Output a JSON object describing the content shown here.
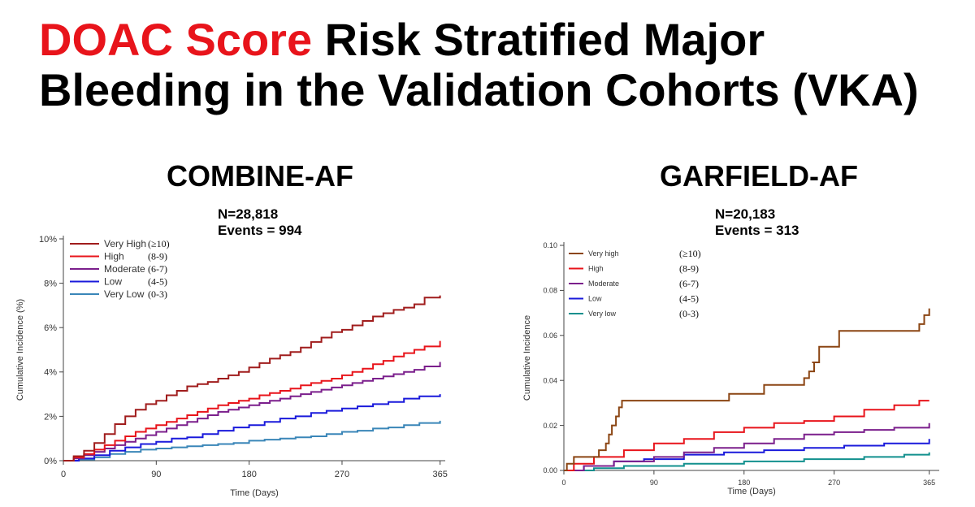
{
  "title": {
    "accent": "DOAC Score",
    "rest": " Risk Stratified Major Bleeding in the Validation Cohorts (VKA)"
  },
  "colors": {
    "accent": "#e8141b"
  },
  "chart_data": [
    {
      "type": "line",
      "panel_title": "COMBINE-AF",
      "n_label": "N=28,818",
      "events_label": "Events = 994",
      "xlabel": "Time (Days)",
      "ylabel": "Cumulative Incidence (%)",
      "xlim": [
        0,
        370
      ],
      "ylim": [
        0,
        10
      ],
      "xticks": [
        0,
        90,
        180,
        270,
        365
      ],
      "xtick_labels": [
        "0",
        "90",
        "180",
        "270",
        "365"
      ],
      "yticks": [
        0,
        2,
        4,
        6,
        8,
        10
      ],
      "ytick_labels": [
        "0%",
        "2%",
        "4%",
        "6%",
        "8%",
        "10%"
      ],
      "legend_placement": "top-left",
      "series": [
        {
          "name": "Very High",
          "range": "(≥10)",
          "color": "#a01c1c",
          "x": [
            0,
            10,
            20,
            30,
            40,
            50,
            60,
            70,
            80,
            90,
            100,
            110,
            120,
            130,
            140,
            150,
            160,
            170,
            180,
            190,
            200,
            210,
            220,
            230,
            240,
            250,
            260,
            270,
            280,
            290,
            300,
            310,
            320,
            330,
            340,
            350,
            365
          ],
          "y": [
            0,
            0.2,
            0.45,
            0.8,
            1.2,
            1.65,
            2.0,
            2.3,
            2.55,
            2.7,
            2.95,
            3.15,
            3.35,
            3.45,
            3.55,
            3.7,
            3.85,
            4.0,
            4.2,
            4.4,
            4.6,
            4.75,
            4.9,
            5.1,
            5.35,
            5.55,
            5.8,
            5.9,
            6.1,
            6.3,
            6.5,
            6.65,
            6.8,
            6.9,
            7.05,
            7.35,
            7.45
          ]
        },
        {
          "name": "High",
          "range": "(8-9)",
          "color": "#e8141b",
          "x": [
            0,
            10,
            20,
            30,
            40,
            50,
            60,
            70,
            80,
            90,
            100,
            110,
            120,
            130,
            140,
            150,
            160,
            170,
            180,
            190,
            200,
            210,
            220,
            230,
            240,
            250,
            260,
            270,
            280,
            290,
            300,
            310,
            320,
            330,
            340,
            350,
            365
          ],
          "y": [
            0,
            0.15,
            0.3,
            0.5,
            0.7,
            0.9,
            1.1,
            1.3,
            1.45,
            1.6,
            1.75,
            1.9,
            2.05,
            2.2,
            2.35,
            2.5,
            2.6,
            2.7,
            2.8,
            2.95,
            3.05,
            3.15,
            3.25,
            3.4,
            3.5,
            3.6,
            3.7,
            3.85,
            4.0,
            4.15,
            4.35,
            4.5,
            4.7,
            4.85,
            5.0,
            5.15,
            5.4
          ]
        },
        {
          "name": "Moderate",
          "range": "(6-7)",
          "color": "#7b1f8c",
          "x": [
            0,
            10,
            20,
            30,
            40,
            50,
            60,
            70,
            80,
            90,
            100,
            110,
            120,
            130,
            140,
            150,
            160,
            170,
            180,
            190,
            200,
            210,
            220,
            230,
            240,
            250,
            260,
            270,
            280,
            290,
            300,
            310,
            320,
            330,
            340,
            350,
            365
          ],
          "y": [
            0,
            0.1,
            0.25,
            0.4,
            0.55,
            0.7,
            0.85,
            1.0,
            1.15,
            1.3,
            1.45,
            1.6,
            1.75,
            1.9,
            2.05,
            2.2,
            2.3,
            2.4,
            2.5,
            2.6,
            2.7,
            2.8,
            2.9,
            3.0,
            3.1,
            3.2,
            3.3,
            3.4,
            3.5,
            3.6,
            3.7,
            3.8,
            3.9,
            4.0,
            4.1,
            4.25,
            4.45
          ]
        },
        {
          "name": "Low",
          "range": "(4-5)",
          "color": "#1a1adb",
          "x": [
            0,
            15,
            30,
            45,
            60,
            75,
            90,
            105,
            120,
            135,
            150,
            165,
            180,
            195,
            210,
            225,
            240,
            255,
            270,
            285,
            300,
            315,
            330,
            345,
            365
          ],
          "y": [
            0,
            0.1,
            0.25,
            0.45,
            0.6,
            0.75,
            0.85,
            1.0,
            1.05,
            1.2,
            1.35,
            1.5,
            1.6,
            1.75,
            1.9,
            2.0,
            2.15,
            2.25,
            2.35,
            2.45,
            2.55,
            2.65,
            2.8,
            2.9,
            3.0
          ]
        },
        {
          "name": "Very Low",
          "range": "(0-3)",
          "color": "#3a86b8",
          "x": [
            0,
            15,
            30,
            45,
            60,
            75,
            90,
            105,
            120,
            135,
            150,
            165,
            180,
            195,
            210,
            225,
            240,
            255,
            270,
            285,
            300,
            315,
            330,
            345,
            365
          ],
          "y": [
            0,
            0.05,
            0.15,
            0.3,
            0.4,
            0.5,
            0.55,
            0.6,
            0.65,
            0.7,
            0.75,
            0.8,
            0.9,
            0.95,
            1.0,
            1.05,
            1.1,
            1.2,
            1.3,
            1.35,
            1.45,
            1.5,
            1.6,
            1.7,
            1.8
          ]
        }
      ]
    },
    {
      "type": "line",
      "panel_title": "GARFIELD-AF",
      "n_label": "N=20,183",
      "events_label": "Events = 313",
      "xlabel": "Time (Days)",
      "ylabel": "Cumulative Incidence",
      "xlim": [
        0,
        375
      ],
      "ylim": [
        0,
        0.1
      ],
      "xticks": [
        0,
        90,
        180,
        270,
        365
      ],
      "xtick_labels": [
        "0",
        "90",
        "180",
        "270",
        "365"
      ],
      "yticks": [
        0,
        0.02,
        0.04,
        0.06,
        0.08,
        0.1
      ],
      "ytick_labels": [
        "0.00",
        "0.02",
        "0.04",
        "0.06",
        "0.08",
        "0.10"
      ],
      "legend_placement": "top-left",
      "series": [
        {
          "name": "Very high",
          "range": "(≥10)",
          "color": "#8b4513",
          "x": [
            0,
            3,
            10,
            25,
            35,
            40,
            42,
            45,
            48,
            52,
            55,
            58,
            100,
            165,
            165,
            200,
            200,
            240,
            245,
            250,
            248,
            255,
            275,
            340,
            355,
            360,
            365
          ],
          "y": [
            0,
            0.003,
            0.006,
            0.006,
            0.009,
            0.009,
            0.012,
            0.016,
            0.02,
            0.024,
            0.028,
            0.031,
            0.031,
            0.031,
            0.034,
            0.034,
            0.038,
            0.041,
            0.044,
            0.048,
            0.048,
            0.055,
            0.062,
            0.062,
            0.065,
            0.069,
            0.072
          ]
        },
        {
          "name": "High",
          "range": "(8-9)",
          "color": "#e8141b",
          "x": [
            0,
            10,
            30,
            60,
            90,
            120,
            150,
            180,
            210,
            240,
            270,
            300,
            330,
            355,
            365
          ],
          "y": [
            0,
            0.003,
            0.006,
            0.009,
            0.012,
            0.014,
            0.017,
            0.019,
            0.021,
            0.022,
            0.024,
            0.027,
            0.029,
            0.031,
            0.031
          ]
        },
        {
          "name": "Moderate",
          "range": "(6-7)",
          "color": "#7b1f8c",
          "x": [
            0,
            20,
            50,
            90,
            120,
            150,
            180,
            210,
            240,
            270,
            300,
            330,
            365
          ],
          "y": [
            0,
            0.002,
            0.004,
            0.006,
            0.008,
            0.01,
            0.012,
            0.014,
            0.016,
            0.017,
            0.018,
            0.019,
            0.021
          ]
        },
        {
          "name": "Low",
          "range": "(4-5)",
          "color": "#1a1adb",
          "x": [
            0,
            20,
            50,
            80,
            120,
            160,
            200,
            240,
            280,
            320,
            365
          ],
          "y": [
            0,
            0.002,
            0.004,
            0.005,
            0.007,
            0.008,
            0.009,
            0.01,
            0.011,
            0.012,
            0.014
          ]
        },
        {
          "name": "Very low",
          "range": "(0-3)",
          "color": "#12908e",
          "x": [
            0,
            30,
            60,
            90,
            120,
            180,
            240,
            300,
            340,
            365
          ],
          "y": [
            0,
            0.001,
            0.002,
            0.002,
            0.003,
            0.004,
            0.005,
            0.006,
            0.007,
            0.008
          ]
        }
      ]
    }
  ]
}
